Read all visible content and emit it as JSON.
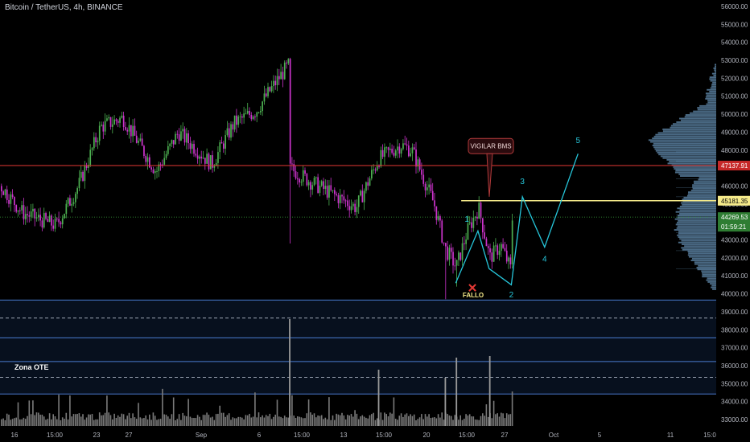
{
  "header": {
    "title": "Bitcoin / TetherUS, 4h, BINANCE"
  },
  "colors": {
    "up": "#4caf50",
    "down": "#cc33cc",
    "resistance": "#e53935",
    "level": "#f5ea8a",
    "zone": "#4a7bd0",
    "wave": "#26c6da",
    "profile": "#5e86a8",
    "volume": "#7a7a7a"
  },
  "chart_data": {
    "type": "candlestick",
    "symbol": "Bitcoin / TetherUS",
    "timeframe": "4h",
    "exchange": "BINANCE",
    "ylim": [
      32600,
      56600
    ],
    "y_ticks": [
      "56000.00",
      "55000.00",
      "54000.00",
      "53000.00",
      "52000.00",
      "51000.00",
      "50000.00",
      "49000.00",
      "48000.00",
      "47000.00",
      "46000.00",
      "45000.00",
      "44000.00",
      "43000.00",
      "42000.00",
      "41000.00",
      "40000.00",
      "39000.00",
      "38000.00",
      "37000.00",
      "36000.00",
      "35000.00",
      "34000.00",
      "33000.00"
    ],
    "x_ticks": [
      "16",
      "15:00",
      "23",
      "27",
      "Sep",
      "6",
      "15:00",
      "13",
      "15:00",
      "20",
      "15:00",
      "27",
      "Oct",
      "5",
      "11",
      "15:0"
    ],
    "price_path": [
      {
        "date": "2021-08-12",
        "price": 46000
      },
      {
        "date": "2021-08-14",
        "price": 44500
      },
      {
        "date": "2021-08-17",
        "price": 43800
      },
      {
        "date": "2021-08-19",
        "price": 46000
      },
      {
        "date": "2021-08-21",
        "price": 49300
      },
      {
        "date": "2021-08-23",
        "price": 49800
      },
      {
        "date": "2021-08-26",
        "price": 46800
      },
      {
        "date": "2021-08-28",
        "price": 49000
      },
      {
        "date": "2021-08-31",
        "price": 47200
      },
      {
        "date": "2021-09-02",
        "price": 49500
      },
      {
        "date": "2021-09-04",
        "price": 50200
      },
      {
        "date": "2021-09-06",
        "price": 52000
      },
      {
        "date": "2021-09-07",
        "price": 52800
      },
      {
        "date": "2021-09-07",
        "price": 47000
      },
      {
        "date": "2021-09-09",
        "price": 46200
      },
      {
        "date": "2021-09-11",
        "price": 45500
      },
      {
        "date": "2021-09-13",
        "price": 44800
      },
      {
        "date": "2021-09-15",
        "price": 47500
      },
      {
        "date": "2021-09-17",
        "price": 48300
      },
      {
        "date": "2021-09-18",
        "price": 48000
      },
      {
        "date": "2021-09-20",
        "price": 45000
      },
      {
        "date": "2021-09-21",
        "price": 42500
      },
      {
        "date": "2021-09-22",
        "price": 41500
      },
      {
        "date": "2021-09-23",
        "price": 43500
      },
      {
        "date": "2021-09-24",
        "price": 44800
      },
      {
        "date": "2021-09-25",
        "price": 42000
      },
      {
        "date": "2021-09-26",
        "price": 42700
      },
      {
        "date": "2021-09-27",
        "price": 41200
      },
      {
        "date": "2021-09-27",
        "price": 44200
      }
    ],
    "levels": {
      "resistance": {
        "price": 47137.91,
        "label": "47137.91"
      },
      "bms": {
        "price": 45181.35,
        "label": "45181.35"
      },
      "last": {
        "price": 44269.53,
        "label": "44269.53",
        "countdown": "01:59:21"
      },
      "zone_lines": [
        39650,
        38650,
        37550,
        36230,
        35350,
        34420
      ]
    },
    "annotations": {
      "callout": "VIGILAR BMS",
      "zone_label": "Zona OTE",
      "fail_label": "FALLO",
      "fail_mark": "✕"
    },
    "wave_projection": {
      "points": [
        {
          "date": "2021-09-22",
          "price": 40600
        },
        {
          "date": "2021-09-24",
          "price": 43500
        },
        {
          "date": "2021-09-25",
          "price": 41400
        },
        {
          "date": "2021-09-27",
          "price": 40500
        },
        {
          "date": "2021-09-28",
          "price": 45400
        },
        {
          "date": "2021-09-30",
          "price": 42600
        },
        {
          "date": "2021-10-03",
          "price": 47800
        }
      ],
      "labels": [
        {
          "text": "1",
          "date": "2021-09-23",
          "price": 44000
        },
        {
          "text": "2",
          "date": "2021-09-27",
          "price": 39800
        },
        {
          "text": "3",
          "date": "2021-09-28",
          "price": 46100
        },
        {
          "text": "4",
          "date": "2021-09-30",
          "price": 41800
        },
        {
          "text": "5",
          "date": "2021-10-03",
          "price": 48400
        }
      ]
    }
  }
}
